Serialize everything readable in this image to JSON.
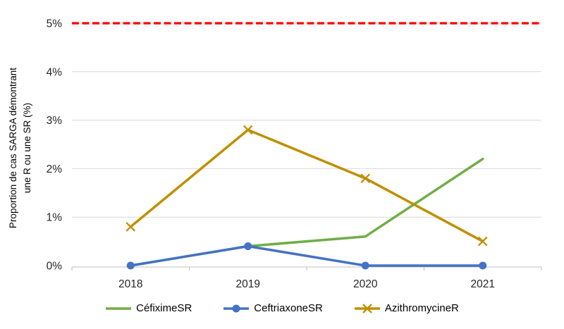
{
  "chart_data": {
    "type": "line",
    "title": "",
    "categories": [
      "2018",
      "2019",
      "2020",
      "2021"
    ],
    "series": [
      {
        "key": "cefixime-sr",
        "name": "CéfiximeSR",
        "color": "#70AD47",
        "marker": "none",
        "values": [
          0.0,
          0.4,
          0.6,
          2.2
        ]
      },
      {
        "key": "ceftriaxone-sr",
        "name": "CeftriaxoneSR",
        "color": "#4472C4",
        "marker": "circle",
        "values": [
          0.0,
          0.4,
          0.0,
          0.0
        ]
      },
      {
        "key": "azithromycine-r",
        "name": "AzithromycineR",
        "color": "#BF8F00",
        "marker": "x",
        "values": [
          0.8,
          2.8,
          1.8,
          0.5
        ]
      }
    ],
    "threshold": {
      "value": 5.0,
      "color": "#FF0000",
      "style": "dashed"
    },
    "ylabel_line1": "Proportion de cas SARGA démontrant",
    "ylabel_line2": "une R ou une SR (%)",
    "y_ticks": [
      "0%",
      "1%",
      "2%",
      "3%",
      "4%",
      "5%"
    ],
    "ylim": [
      0,
      5
    ],
    "grid": "horizontal",
    "legend_position": "bottom",
    "colors": {
      "gridline": "#D9D9D9",
      "axis_line": "#BFBFBF",
      "tick_text": "#262626"
    }
  }
}
